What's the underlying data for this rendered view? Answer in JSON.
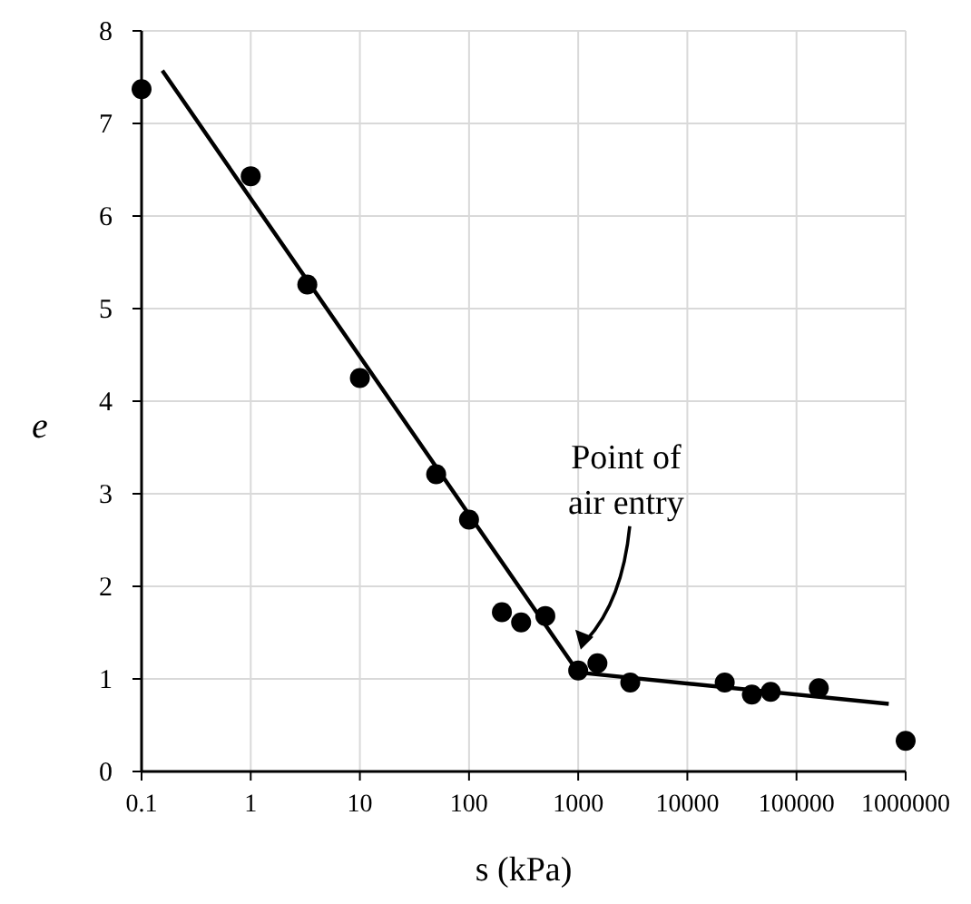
{
  "chart_data": {
    "type": "scatter",
    "xlabel": "s (kPa)",
    "ylabel": "e",
    "log": "x",
    "grid": true,
    "marker": "circle",
    "xlim": [
      0.1,
      1000000
    ],
    "xticks": [
      0.1,
      1,
      10,
      100,
      1000,
      10000,
      100000,
      1000000
    ],
    "ylim": [
      0,
      8
    ],
    "yticks": [
      0,
      1,
      2,
      3,
      4,
      5,
      6,
      7,
      8
    ],
    "series": [
      {
        "color": "#000000",
        "x": [
          0.1,
          1,
          3.3,
          10,
          50,
          100,
          200,
          300,
          500,
          1000,
          1500,
          3000,
          22000,
          39000,
          58000,
          160000,
          1000000
        ],
        "values": [
          7.37,
          6.43,
          5.26,
          4.25,
          3.21,
          2.72,
          1.72,
          1.61,
          1.68,
          1.09,
          1.17,
          0.96,
          0.96,
          0.83,
          0.86,
          0.9,
          0.33
        ]
      },
      {
        "type": "line",
        "color": "#000000",
        "marker": "none",
        "line_style": "solid",
        "x": [
          0.155,
          1000,
          700000
        ],
        "values": [
          7.57,
          1.07,
          0.73
        ]
      }
    ],
    "annotations": [
      "Point of air entry"
    ]
  }
}
